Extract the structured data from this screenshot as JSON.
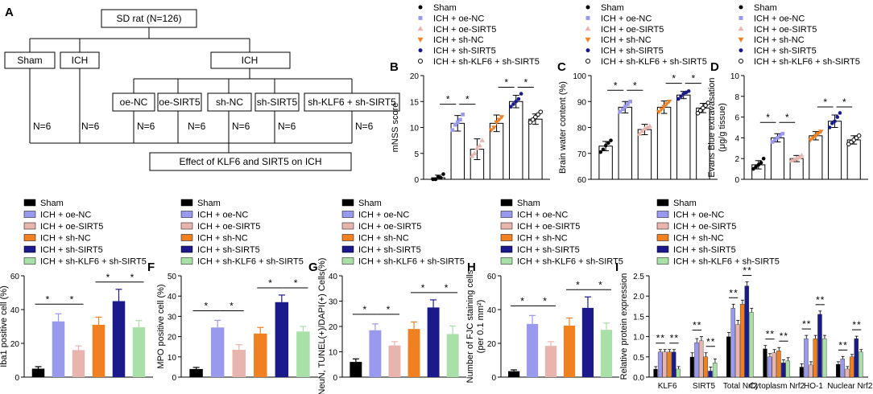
{
  "chart_data": {
    "flowchart": {
      "panel_letter": "A",
      "root": "SD rat (N=126)",
      "group_sham": "Sham",
      "group_ich_only": "ICH",
      "group_ich_treated": "ICH",
      "count_sham": "N=6",
      "count_ich": "N=6",
      "subgroups": [
        "oe-NC",
        "oe-SIRT5",
        "sh-NC",
        "sh-SIRT5",
        "sh-KLF6 + sh-SIRT5"
      ],
      "subgroup_counts": [
        "N=6",
        "N=6",
        "N=6",
        "N=6",
        "N=6"
      ],
      "result": "Effect  of KLF6 and SIRT5 on ICH"
    },
    "groups": [
      "Sham",
      "ICH + oe-NC",
      "ICH + oe-SIRT5",
      "ICH + sh-NC",
      "ICH + sh-SIRT5",
      "ICH + sh-KLF6 + sh-SIRT5"
    ],
    "group_colors": [
      "#000000",
      "#9999ee",
      "#e8b4ae",
      "#f08020",
      "#1a1a8c",
      "#a8e0a8"
    ],
    "scatter_panels": [
      {
        "type": "bar",
        "panel": "B",
        "ylabel": "mNSS score",
        "ylim": [
          0,
          20
        ],
        "yticks": [
          0,
          5,
          10,
          15,
          20
        ],
        "values": [
          0.3,
          10.8,
          5.8,
          10.8,
          15.0,
          11.6
        ],
        "errors": [
          0.5,
          1.5,
          2.0,
          1.6,
          1.2,
          1.0
        ],
        "points": [
          [
            0,
            0,
            0.5,
            0.3,
            1.0
          ],
          [
            9.5,
            10.5,
            11.0,
            11.5,
            12.5
          ],
          [
            4.5,
            5.0,
            6.0,
            6.5,
            7.5
          ],
          [
            9.5,
            10.0,
            11.0,
            11.5,
            12.0
          ],
          [
            14.0,
            14.5,
            15.0,
            15.5,
            16.5
          ],
          [
            11.0,
            11.5,
            12.0,
            12.5,
            13.0
          ]
        ],
        "sig_labels": [
          "*",
          "*",
          "*",
          "*"
        ]
      },
      {
        "type": "bar",
        "panel": "C",
        "ylabel": "Brain water content (%)",
        "ylim": [
          60,
          100
        ],
        "yticks": [
          60,
          70,
          80,
          90,
          100
        ],
        "values": [
          72.8,
          87.8,
          79.2,
          87.8,
          92.5,
          87.5
        ],
        "errors": [
          1.8,
          2.2,
          2.0,
          2.4,
          1.4,
          1.8
        ],
        "points": [
          [
            70.5,
            71.5,
            73.0,
            74.0,
            75.0
          ],
          [
            86.0,
            87.0,
            88.0,
            89.0,
            90.0
          ],
          [
            77.5,
            78.5,
            79.5,
            80.0,
            80.5
          ],
          [
            86.0,
            87.0,
            88.0,
            89.0,
            90.0
          ],
          [
            91.0,
            92.0,
            93.0,
            93.5,
            94.0
          ],
          [
            85.5,
            86.5,
            87.5,
            88.5,
            89.5
          ]
        ],
        "sig_labels": [
          "*",
          "*",
          "*",
          "*"
        ]
      },
      {
        "type": "bar",
        "panel": "D",
        "ylabel": "Evans Blue extravasation",
        "ylabel2": "(μg/g tissue)",
        "ylim": [
          0,
          10
        ],
        "yticks": [
          0,
          2,
          4,
          6,
          8,
          10
        ],
        "values": [
          1.4,
          4.0,
          2.0,
          4.2,
          5.6,
          3.8
        ],
        "errors": [
          0.4,
          0.4,
          0.3,
          0.4,
          0.6,
          0.4
        ],
        "points": [
          [
            1.0,
            1.2,
            1.4,
            1.6,
            2.0
          ],
          [
            3.6,
            3.8,
            4.0,
            4.2,
            4.4
          ],
          [
            1.8,
            1.9,
            2.0,
            2.1,
            2.3
          ],
          [
            3.8,
            4.0,
            4.2,
            4.4,
            4.6
          ],
          [
            5.0,
            5.4,
            5.6,
            6.0,
            6.4
          ],
          [
            3.4,
            3.6,
            3.8,
            4.0,
            4.2
          ]
        ],
        "sig_labels": [
          "*",
          "*",
          "*",
          "*"
        ]
      }
    ],
    "bar_panels": [
      {
        "type": "bar",
        "panel": "E",
        "ylabel": "Iba1 positive cell (%)",
        "ylim": [
          0,
          60
        ],
        "yticks": [
          0,
          20,
          40,
          60
        ],
        "values": [
          5,
          33,
          16,
          31,
          45,
          29.5
        ],
        "errors": [
          1.2,
          4.5,
          2.5,
          4.5,
          7.0,
          4.0
        ],
        "sig_labels": [
          "*",
          "*",
          "*",
          "*"
        ]
      },
      {
        "type": "bar",
        "panel": "F",
        "ylabel": "MPO positive cell (%)",
        "ylim": [
          0,
          50
        ],
        "yticks": [
          0,
          10,
          20,
          30,
          40,
          50
        ],
        "values": [
          4,
          24.5,
          13.5,
          21.5,
          37,
          22.5
        ],
        "errors": [
          0.8,
          3.5,
          2.5,
          3.0,
          3.5,
          2.5
        ],
        "sig_labels": [
          "*",
          "*",
          "*",
          "*"
        ]
      },
      {
        "type": "bar",
        "panel": "G",
        "ylabel": "NeuN, TUNEL(+)/DAPI(+) Cells(%)",
        "ylim": [
          0,
          40
        ],
        "yticks": [
          0,
          10,
          20,
          30,
          40
        ],
        "values": [
          6,
          18.5,
          12.5,
          19,
          27.5,
          17
        ],
        "errors": [
          1.2,
          2.5,
          1.5,
          2.8,
          3.0,
          3.2
        ],
        "sig_labels": [
          "*",
          "*",
          "*",
          "*"
        ]
      },
      {
        "type": "bar",
        "panel": "H",
        "ylabel": "Number of FJC staining cells",
        "ylabel2": "(per 0.1 mm²)",
        "ylim": [
          0,
          60
        ],
        "yticks": [
          0,
          20,
          40,
          60
        ],
        "values": [
          3.5,
          31.5,
          18.5,
          30.5,
          41,
          28
        ],
        "errors": [
          0.8,
          5.0,
          2.5,
          4.5,
          6.5,
          4.0
        ],
        "sig_labels": [
          "*",
          "*",
          "*",
          "*"
        ]
      }
    ],
    "grouped_panel": {
      "type": "bar",
      "panel": "I",
      "ylabel": "Relative protein expression",
      "ylim": [
        0,
        2.5
      ],
      "yticks": [
        "0.0",
        "0.5",
        "1.0",
        "1.5",
        "2.0",
        "2.5"
      ],
      "categories": [
        "KLF6",
        "SIRT5",
        "Total Nrf2",
        "Cytoplasm Nrf2",
        "HO-1",
        "Nuclear Nrf2"
      ],
      "series": [
        {
          "name": "Sham",
          "values": [
            0.2,
            0.5,
            1.0,
            0.7,
            0.25,
            0.32
          ]
        },
        {
          "name": "ICH + oe-NC",
          "values": [
            0.62,
            0.85,
            1.7,
            0.5,
            0.95,
            0.45
          ]
        },
        {
          "name": "ICH + oe-SIRT5",
          "values": [
            0.62,
            0.9,
            1.3,
            0.6,
            0.3,
            0.2
          ]
        },
        {
          "name": "ICH + sh-NC",
          "values": [
            0.62,
            0.5,
            1.8,
            0.65,
            0.95,
            0.5
          ]
        },
        {
          "name": "ICH + sh-SIRT5",
          "values": [
            0.62,
            0.15,
            2.25,
            0.35,
            1.55,
            0.95
          ]
        },
        {
          "name": "ICH + sh-KLF6 + sh-SIRT5",
          "values": [
            0.2,
            0.35,
            1.6,
            0.4,
            0.95,
            0.62
          ]
        }
      ],
      "errors": [
        0.06,
        0.1,
        0.1,
        0.08,
        0.08,
        0.06
      ],
      "sig_label": "*"
    }
  }
}
